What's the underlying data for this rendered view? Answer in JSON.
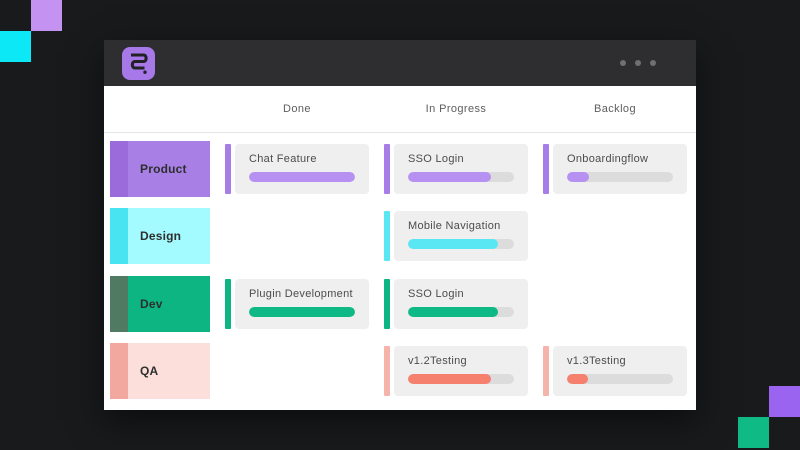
{
  "theme": {
    "desktop_bg": "#191a1c",
    "titlebar_bg": "#2e2e31",
    "logo_bg": "#a678e8",
    "card_bg": "#efefef",
    "track": "#dcdcdc"
  },
  "decor": {
    "squares": [
      {
        "name": "top-left-purple",
        "color": "#c493f2"
      },
      {
        "name": "top-left-cyan",
        "color": "#0ce8f5"
      },
      {
        "name": "bottom-right-purple",
        "color": "#9a63f0"
      },
      {
        "name": "bottom-right-green",
        "color": "#10ba85"
      }
    ]
  },
  "window": {
    "titlebar": {
      "logo_icon": "squiggle-2-logo",
      "menu_icon": "ellipsis-menu"
    },
    "board": {
      "columns": [
        "Done",
        "In Progress",
        "Backlog"
      ],
      "rows": [
        {
          "label": "Product",
          "colors": {
            "label_bg": "#a77fe5",
            "label_strip": "#9b6bdc",
            "accent": "#a77de8",
            "bar": "#b791f1"
          },
          "cells": [
            {
              "title": "Chat Feature",
              "progress": 100
            },
            {
              "title": "SSO Login",
              "progress": 78
            },
            {
              "title": "Onboardingflow",
              "progress": 21
            }
          ]
        },
        {
          "label": "Design",
          "colors": {
            "label_bg": "#a4fbff",
            "label_strip": "#49e4f2",
            "accent": "#58e7f3",
            "bar": "#58e7f3"
          },
          "cells": [
            null,
            {
              "title": "Mobile Navigation",
              "progress": 85
            },
            null
          ]
        },
        {
          "label": "Dev",
          "colors": {
            "label_bg": "#0cb581",
            "label_strip": "#507a62",
            "accent": "#0cb581",
            "bar": "#0fb985"
          },
          "cells": [
            {
              "title": "Plugin Development",
              "progress": 100
            },
            {
              "title": "SSO Login",
              "progress": 85
            },
            null
          ]
        },
        {
          "label": "QA",
          "colors": {
            "label_bg": "#fcdfdb",
            "label_strip": "#f3a89f",
            "accent": "#f6b3aa",
            "bar": "#f4806d"
          },
          "cells": [
            null,
            {
              "title": "v1.2Testing",
              "progress": 78
            },
            {
              "title": "v1.3Testing",
              "progress": 20
            }
          ]
        }
      ]
    }
  }
}
